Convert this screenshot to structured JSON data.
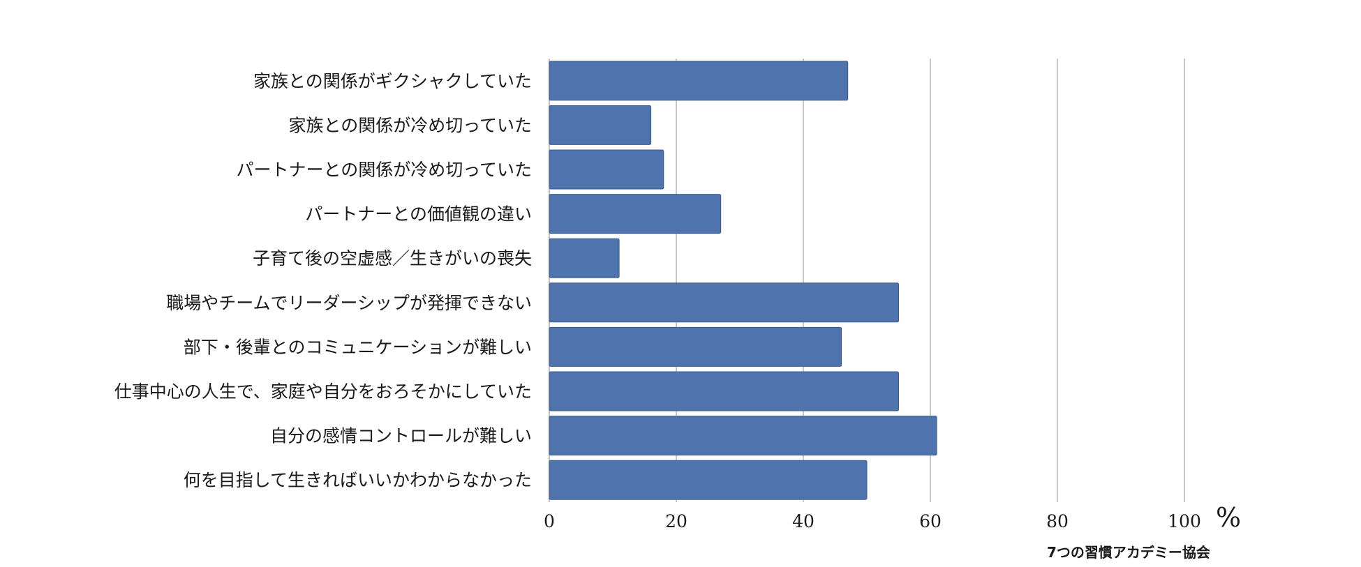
{
  "chart_data": {
    "type": "bar",
    "orientation": "horizontal",
    "categories": [
      "家族との関係がギクシャクしていた",
      "家族との関係が冷め切っていた",
      "パートナーとの関係が冷め切っていた",
      "パートナーとの価値観の違い",
      "子育て後の空虚感／生きがいの喪失",
      "職場やチームでリーダーシップが発揮できない",
      "部下・後輩とのコミュニケーションが難しい",
      "仕事中心の人生で、家庭や自分をおろそかにしていた",
      "自分の感情コントロールが難しい",
      "何を目指して生きればいいかわからなかった"
    ],
    "values": [
      47,
      16,
      18,
      27,
      11,
      55,
      46,
      55,
      61,
      50
    ],
    "xlim": [
      0,
      100
    ],
    "xticks": [
      "0",
      "20",
      "40",
      "60",
      "80",
      "100"
    ],
    "xunit": "%",
    "source": "7つの習慣アカデミー協会",
    "grid": "vertical",
    "bar_color": "#4f73ac",
    "bar_edge_color": "#3d5c8f"
  }
}
